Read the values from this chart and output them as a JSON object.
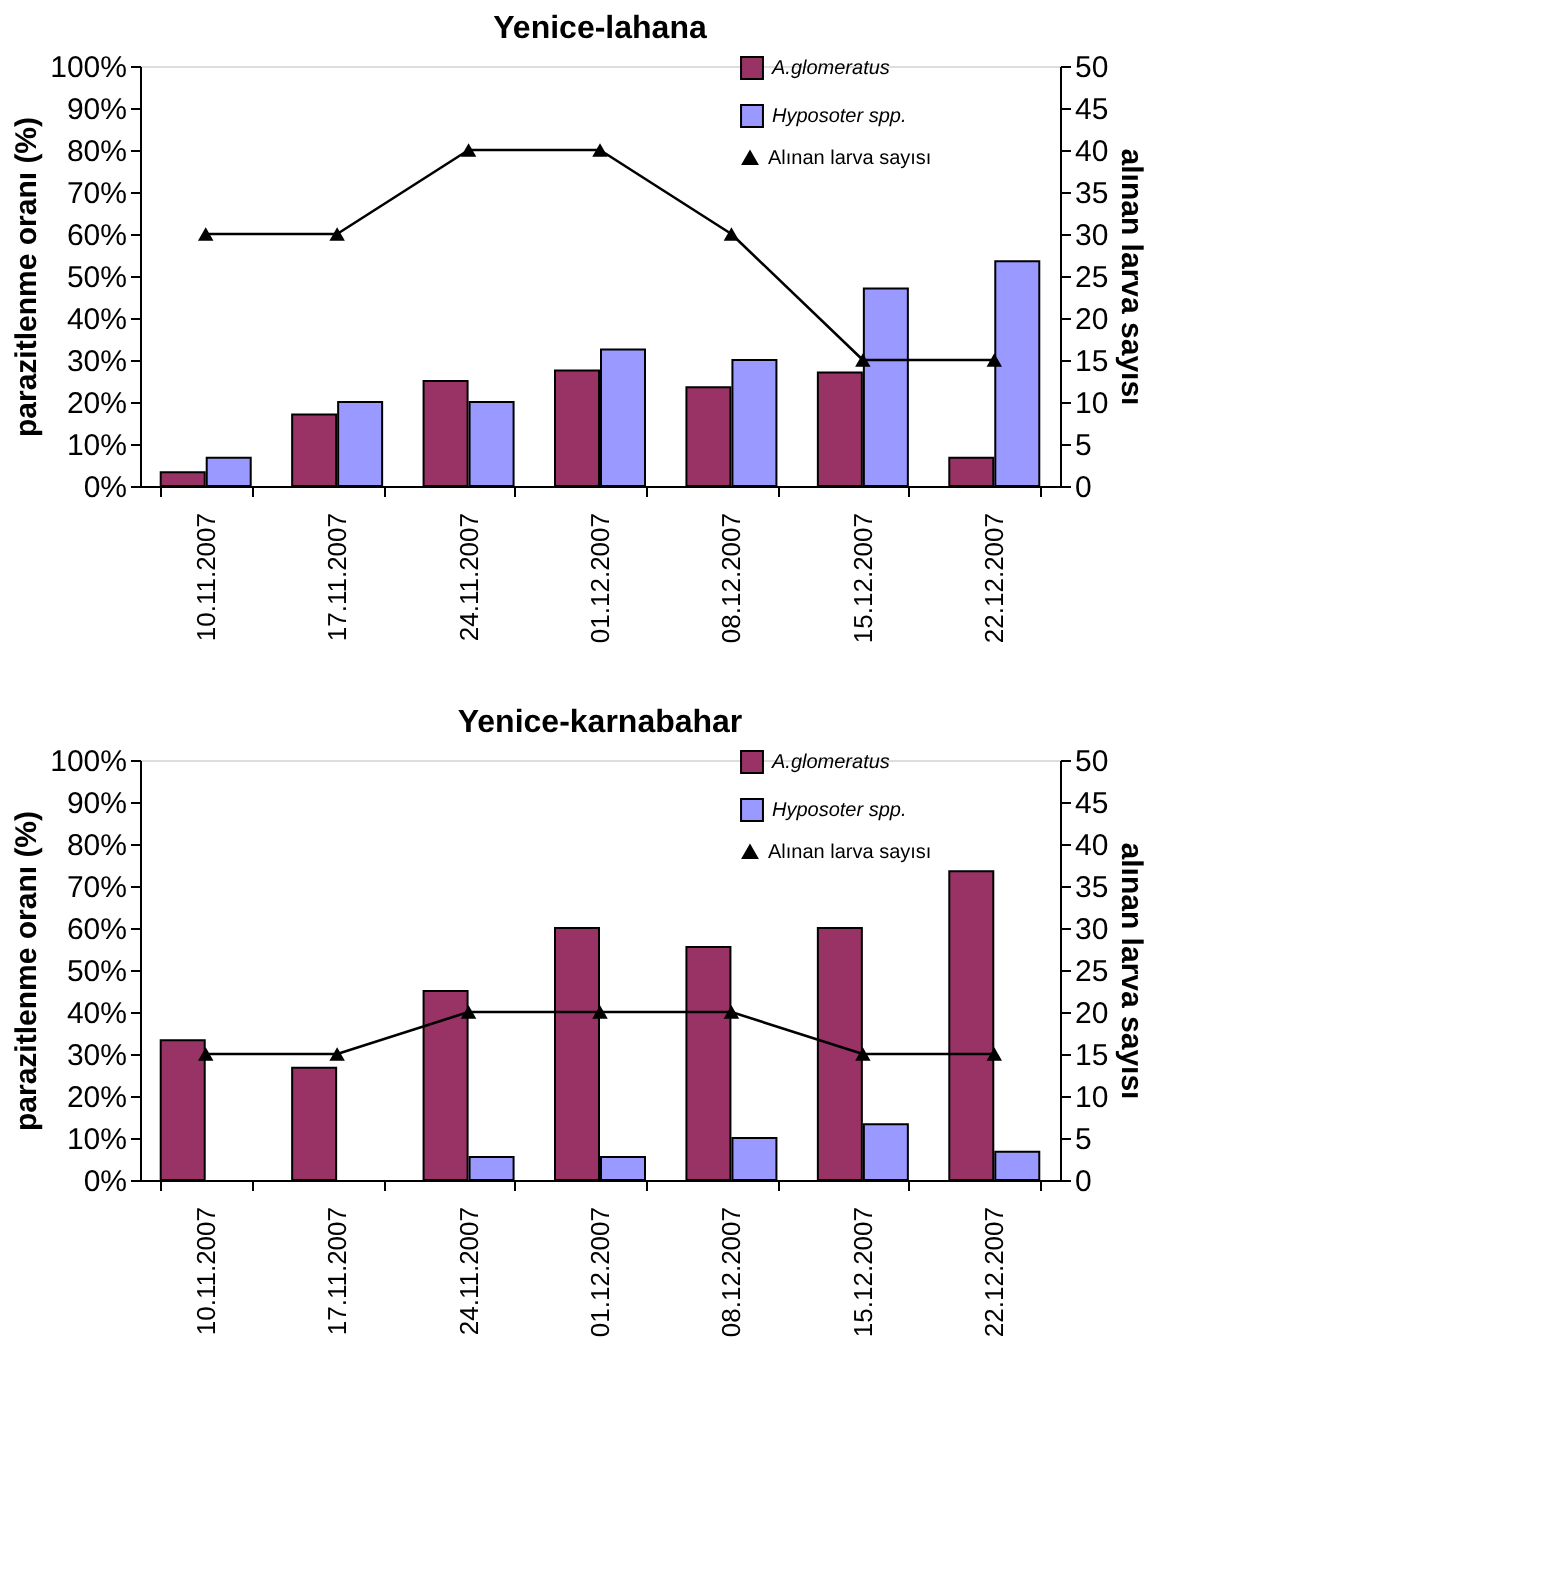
{
  "chart_data": [
    {
      "type": "bar",
      "title": "Yenice-lahana",
      "ylabel": "parazitlenme oranı (%)",
      "y2label": "alınan larva sayısı",
      "categories": [
        "10.11.2007",
        "17.11.2007",
        "24.11.2007",
        "01.12.2007",
        "08.12.2007",
        "15.12.2007",
        "22.12.2007"
      ],
      "series": [
        {
          "name": "A.glomeratus",
          "color": "#993366",
          "values": [
            3.3,
            17,
            25,
            27.5,
            23.5,
            27,
            6.7
          ]
        },
        {
          "name": "Hyposoter spp.",
          "color": "#9999ff",
          "values": [
            6.7,
            20,
            20,
            32.5,
            30,
            47,
            53.5
          ]
        },
        {
          "name": "Alınan larva sayısı",
          "type": "line",
          "axis": "y2",
          "marker": "triangle",
          "color": "#000000",
          "values": [
            30,
            30,
            40,
            40,
            30,
            15,
            15
          ]
        }
      ],
      "ylim": [
        0,
        100
      ],
      "yticks": [
        {
          "value": 0,
          "label": "0%"
        },
        {
          "value": 10,
          "label": "10%"
        },
        {
          "value": 20,
          "label": "20%"
        },
        {
          "value": 30,
          "label": "30%"
        },
        {
          "value": 40,
          "label": "40%"
        },
        {
          "value": 50,
          "label": "50%"
        },
        {
          "value": 60,
          "label": "60%"
        },
        {
          "value": 70,
          "label": "70%"
        },
        {
          "value": 80,
          "label": "80%"
        },
        {
          "value": 90,
          "label": "90%"
        },
        {
          "value": 100,
          "label": "100%"
        }
      ],
      "y2lim": [
        0,
        50
      ],
      "y2ticks": [
        0,
        5,
        10,
        15,
        20,
        25,
        30,
        35,
        40,
        45,
        50
      ],
      "legend": "top right",
      "grid": false
    },
    {
      "type": "bar",
      "title": "Yenice-karnabahar",
      "ylabel": "parazitlenme oranı (%)",
      "y2label": "alınan larva sayısı",
      "categories": [
        "10.11.2007",
        "17.11.2007",
        "24.11.2007",
        "01.12.2007",
        "08.12.2007",
        "15.12.2007",
        "22.12.2007"
      ],
      "series": [
        {
          "name": "A.glomeratus",
          "color": "#993366",
          "values": [
            33.3,
            26.7,
            45,
            60,
            55.5,
            60,
            73.5
          ]
        },
        {
          "name": "Hyposoter spp.",
          "color": "#9999ff",
          "values": [
            null,
            null,
            5.5,
            5.5,
            10,
            13.3,
            6.7
          ]
        },
        {
          "name": "Alınan larva sayısı",
          "type": "line",
          "axis": "y2",
          "marker": "triangle",
          "color": "#000000",
          "values": [
            15,
            15,
            20,
            20,
            20,
            15,
            15
          ]
        }
      ],
      "ylim": [
        0,
        100
      ],
      "yticks": [
        {
          "value": 0,
          "label": "0%"
        },
        {
          "value": 10,
          "label": "10%"
        },
        {
          "value": 20,
          "label": "20%"
        },
        {
          "value": 30,
          "label": "30%"
        },
        {
          "value": 40,
          "label": "40%"
        },
        {
          "value": 50,
          "label": "50%"
        },
        {
          "value": 60,
          "label": "60%"
        },
        {
          "value": 70,
          "label": "70%"
        },
        {
          "value": 80,
          "label": "80%"
        },
        {
          "value": 90,
          "label": "90%"
        },
        {
          "value": 100,
          "label": "100%"
        }
      ],
      "y2lim": [
        0,
        50
      ],
      "y2ticks": [
        0,
        5,
        10,
        15,
        20,
        25,
        30,
        35,
        40,
        45,
        50
      ],
      "legend": "top right",
      "grid": false
    }
  ]
}
